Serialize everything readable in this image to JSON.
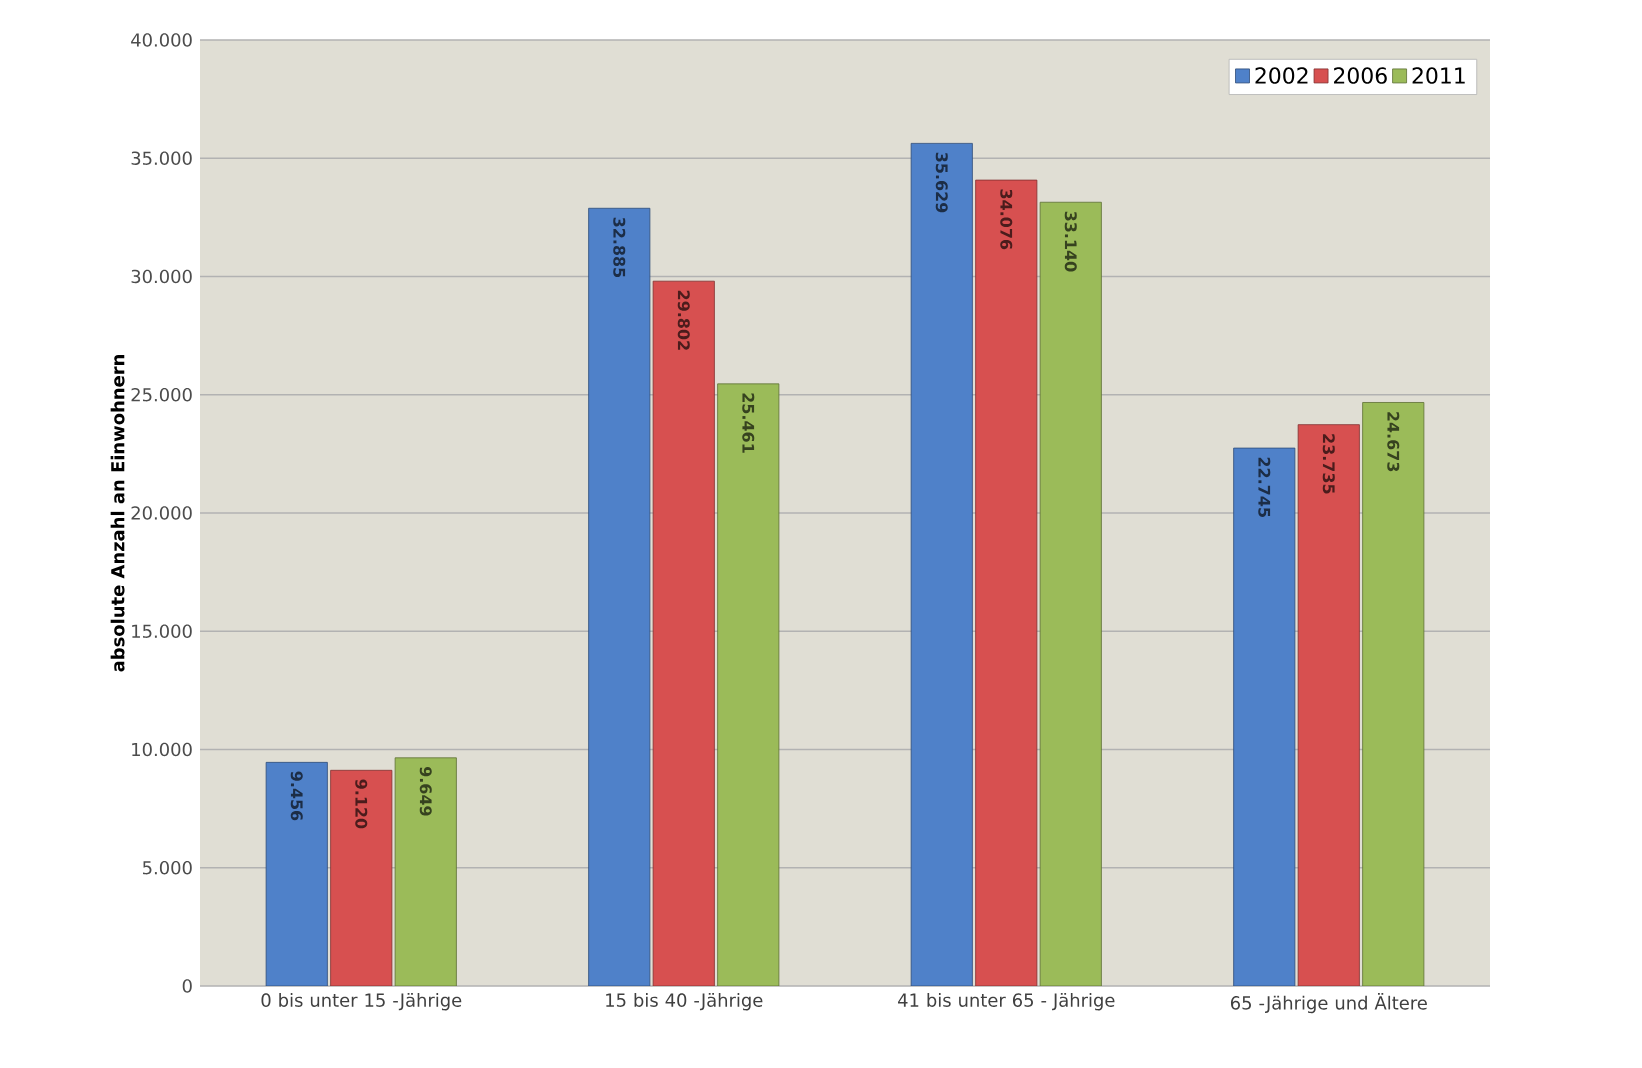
{
  "chart_data": {
    "type": "bar",
    "ylabel": "absolute Anzahl an Einwohnern",
    "categories": [
      "0 bis unter 15 -Jährige",
      "15 bis 40 -Jährige",
      "41 bis unter 65 - Jährige",
      "65 -Jährige und Ältere"
    ],
    "series": [
      {
        "name": "2002",
        "color": "#4f81c9",
        "values": [
          9456,
          32885,
          35629,
          22745
        ],
        "value_labels": [
          "9.456",
          "32.885",
          "35.629",
          "22.745"
        ]
      },
      {
        "name": "2006",
        "color": "#d75050",
        "values": [
          9120,
          29802,
          34076,
          23735
        ],
        "value_labels": [
          "9.120",
          "29.802",
          "34.076",
          "23.735"
        ]
      },
      {
        "name": "2011",
        "color": "#9bbb59",
        "values": [
          9649,
          25461,
          33140,
          24673
        ],
        "value_labels": [
          "9.649",
          "25.461",
          "33.140",
          "24.673"
        ]
      }
    ],
    "ylim": [
      0,
      40000
    ],
    "yticks": [
      {
        "value": 0,
        "label": "0"
      },
      {
        "value": 5000,
        "label": "5.000"
      },
      {
        "value": 10000,
        "label": "10.000"
      },
      {
        "value": 15000,
        "label": "15.000"
      },
      {
        "value": 20000,
        "label": "20.000"
      },
      {
        "value": 25000,
        "label": "25.000"
      },
      {
        "value": 30000,
        "label": "30.000"
      },
      {
        "value": 35000,
        "label": "35.000"
      },
      {
        "value": 40000,
        "label": "40.000"
      }
    ],
    "grid": "y",
    "legend": "top right"
  }
}
